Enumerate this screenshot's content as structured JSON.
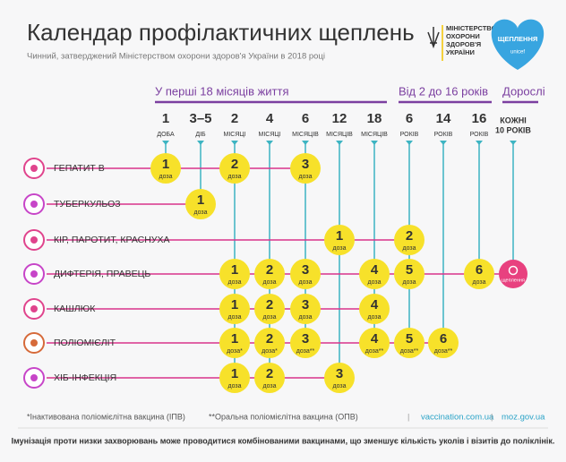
{
  "header": {
    "title": "Календар профілактичних щеплень",
    "subtitle": "Чинний, затверджений Міністерством охорони здоров'я України в 2018 році",
    "ministry": [
      "МІНІСТЕРСТВО",
      "ОХОРОНИ",
      "ЗДОРОВ'Я",
      "УКРАЇНИ"
    ],
    "campaign": "ЩЕПЛЕННЯ",
    "partner": "unicef"
  },
  "groups": [
    {
      "label": "У перші 18 місяців життя",
      "columns": [
        {
          "number": "1",
          "unit": "ДОБА"
        },
        {
          "number": "3–5",
          "unit": "ДІБ"
        },
        {
          "number": "2",
          "unit": "МІСЯЦІ"
        },
        {
          "number": "4",
          "unit": "МІСЯЦІ"
        },
        {
          "number": "6",
          "unit": "МІСЯЦІВ"
        },
        {
          "number": "12",
          "unit": "МІСЯЦІВ"
        },
        {
          "number": "18",
          "unit": "МІСЯЦІВ"
        }
      ]
    },
    {
      "label": "Від 2 до 16 років",
      "columns": [
        {
          "number": "6",
          "unit": "РОКІВ"
        },
        {
          "number": "14",
          "unit": "РОКІВ"
        },
        {
          "number": "16",
          "unit": "РОКІВ"
        }
      ]
    },
    {
      "label": "Дорослі",
      "columns": [
        {
          "number": "КОЖНІ",
          "unit": "10 РОКІВ"
        }
      ]
    }
  ],
  "rows": [
    {
      "label": "ГЕПАТИТ В",
      "cells": [
        {
          "dose": "1",
          "unit": "доза"
        },
        null,
        {
          "dose": "2",
          "unit": "доза"
        },
        null,
        {
          "dose": "3",
          "unit": "доза"
        },
        null,
        null,
        null,
        null,
        null,
        null
      ]
    },
    {
      "label": "ТУБЕРКУЛЬОЗ",
      "cells": [
        null,
        {
          "dose": "1",
          "unit": "доза"
        },
        null,
        null,
        null,
        null,
        null,
        null,
        null,
        null,
        null
      ]
    },
    {
      "label": "КІР, ПАРОТИТ, КРАСНУХА",
      "cells": [
        null,
        null,
        null,
        null,
        null,
        {
          "dose": "1",
          "unit": "доза"
        },
        null,
        {
          "dose": "2",
          "unit": "доза"
        },
        null,
        null,
        null
      ]
    },
    {
      "label": "ДИФТЕРІЯ, ПРАВЕЦЬ",
      "cells": [
        null,
        null,
        {
          "dose": "1",
          "unit": "доза"
        },
        {
          "dose": "2",
          "unit": "доза"
        },
        {
          "dose": "3",
          "unit": "доза"
        },
        null,
        {
          "dose": "4",
          "unit": "доза"
        },
        {
          "dose": "5",
          "unit": "доза"
        },
        null,
        {
          "dose": "6",
          "unit": "доза"
        },
        {
          "badge": "щеплення"
        }
      ]
    },
    {
      "label": "КАШЛЮК",
      "cells": [
        null,
        null,
        {
          "dose": "1",
          "unit": "доза"
        },
        {
          "dose": "2",
          "unit": "доза"
        },
        {
          "dose": "3",
          "unit": "доза"
        },
        null,
        {
          "dose": "4",
          "unit": "доза"
        },
        null,
        null,
        null,
        null
      ]
    },
    {
      "label": "ПОЛІОМІЄЛІТ",
      "cells": [
        null,
        null,
        {
          "dose": "1",
          "unit": "доза*"
        },
        {
          "dose": "2",
          "unit": "доза*"
        },
        {
          "dose": "3",
          "unit": "доза**"
        },
        null,
        {
          "dose": "4",
          "unit": "доза**"
        },
        {
          "dose": "5",
          "unit": "доза**"
        },
        {
          "dose": "6",
          "unit": "доза**"
        },
        null,
        null
      ]
    },
    {
      "label": "ХІБ-ІНФЕКЦІЯ",
      "cells": [
        null,
        null,
        {
          "dose": "1",
          "unit": "доза"
        },
        {
          "dose": "2",
          "unit": "доза"
        },
        null,
        {
          "dose": "3",
          "unit": "доза"
        },
        null,
        null,
        null,
        null,
        null
      ]
    }
  ],
  "footer": {
    "notes": [
      "*Інактивована поліомієлітна вакцина (ІПВ)",
      "**Оральна поліомієлітна вакцина (ОПВ)"
    ],
    "separator": "|",
    "links": [
      "vaccination.com.ua",
      "moz.gov.ua"
    ],
    "remark": "Імунізація проти низки захворювань може проводитися комбінованими вакцинами, що зменшує кількість уколів і візитів до поліклінік."
  }
}
